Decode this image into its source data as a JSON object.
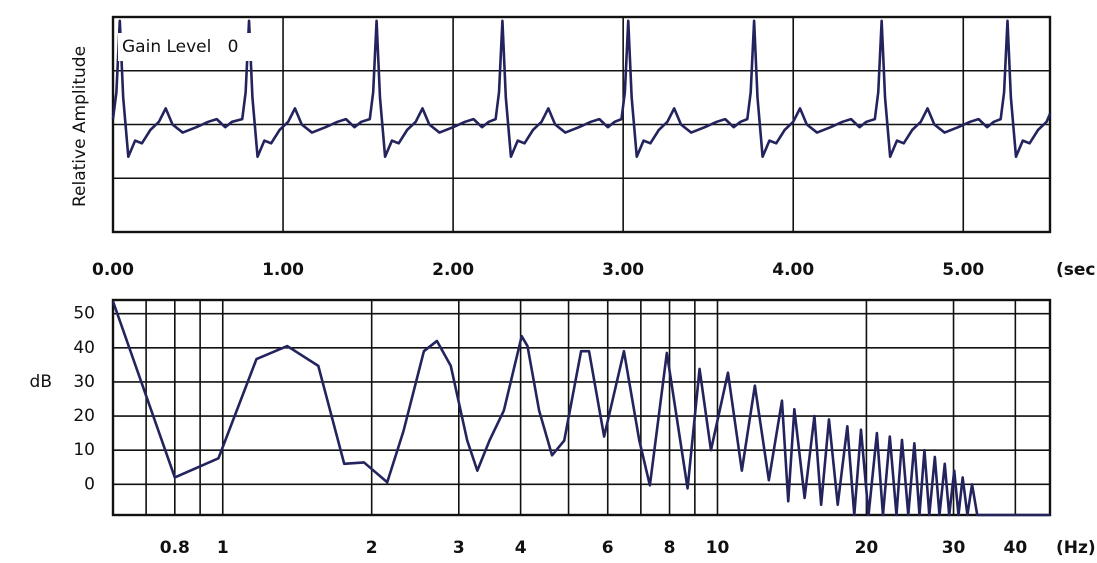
{
  "chart_data": [
    {
      "type": "line",
      "ylabel": "Relative Amplitude",
      "annotation": "Gain Level   0",
      "xlabel": "(sec)",
      "color": "#23235e",
      "xlim": [
        0,
        5.51
      ],
      "xticks": [
        {
          "value": 0,
          "label": "0.00"
        },
        {
          "value": 1,
          "label": "1.00"
        },
        {
          "value": 2,
          "label": "2.00"
        },
        {
          "value": 3,
          "label": "3.00"
        },
        {
          "value": 4,
          "label": "4.00"
        },
        {
          "value": 5,
          "label": "5.00"
        }
      ],
      "ylim": [
        -2,
        2
      ],
      "yticks": [
        -1,
        0,
        1
      ],
      "show_ytick_labels": false,
      "grid": true,
      "x": [
        0.0,
        0.02,
        0.04,
        0.06,
        0.09,
        0.13,
        0.17,
        0.22,
        0.27,
        0.31,
        0.35,
        0.41,
        0.49,
        0.56,
        0.61,
        0.66,
        0.7,
        0.76,
        0.78,
        0.8,
        0.82,
        0.85,
        0.89,
        0.93,
        0.98,
        1.03,
        1.07,
        1.11,
        1.17,
        1.25,
        1.32,
        1.37,
        1.42,
        1.46,
        1.51,
        1.53,
        1.55,
        1.57,
        1.6,
        1.64,
        1.68,
        1.73,
        1.78,
        1.82,
        1.86,
        1.92,
        2.0,
        2.07,
        2.12,
        2.17,
        2.21,
        2.25,
        2.27,
        2.29,
        2.31,
        2.34,
        2.38,
        2.42,
        2.47,
        2.52,
        2.56,
        2.6,
        2.66,
        2.74,
        2.81,
        2.86,
        2.91,
        2.95,
        2.99,
        3.01,
        3.03,
        3.05,
        3.08,
        3.12,
        3.16,
        3.21,
        3.26,
        3.3,
        3.34,
        3.4,
        3.48,
        3.55,
        3.6,
        3.65,
        3.69,
        3.73,
        3.75,
        3.77,
        3.79,
        3.82,
        3.86,
        3.9,
        3.95,
        4.0,
        4.04,
        4.08,
        4.14,
        4.22,
        4.29,
        4.34,
        4.39,
        4.43,
        4.48,
        4.5,
        4.52,
        4.54,
        4.57,
        4.61,
        4.65,
        4.7,
        4.75,
        4.79,
        4.83,
        4.89,
        4.97,
        5.04,
        5.09,
        5.14,
        5.18,
        5.22,
        5.24,
        5.26,
        5.28,
        5.31,
        5.35,
        5.39,
        5.44,
        5.49,
        5.51
      ],
      "values": [
        0.1,
        0.6,
        1.93,
        0.5,
        -0.6,
        -0.3,
        -0.35,
        -0.1,
        0.05,
        0.3,
        0,
        -0.15,
        -0.05,
        0.05,
        0.1,
        -0.05,
        0.05,
        0.1,
        0.6,
        1.93,
        0.5,
        -0.6,
        -0.3,
        -0.35,
        -0.1,
        0.05,
        0.3,
        0,
        -0.15,
        -0.05,
        0.05,
        0.1,
        -0.05,
        0.05,
        0.1,
        0.6,
        1.93,
        0.5,
        -0.6,
        -0.3,
        -0.35,
        -0.1,
        0.05,
        0.3,
        0,
        -0.15,
        -0.05,
        0.05,
        0.1,
        -0.05,
        0.05,
        0.1,
        0.6,
        1.93,
        0.5,
        -0.6,
        -0.3,
        -0.35,
        -0.1,
        0.05,
        0.3,
        0,
        -0.15,
        -0.05,
        0.05,
        0.1,
        -0.05,
        0.05,
        0.1,
        0.6,
        1.93,
        0.5,
        -0.6,
        -0.3,
        -0.35,
        -0.1,
        0.05,
        0.3,
        0,
        -0.15,
        -0.05,
        0.05,
        0.1,
        -0.05,
        0.05,
        0.1,
        0.6,
        1.93,
        0.5,
        -0.6,
        -0.3,
        -0.35,
        -0.1,
        0.05,
        0.3,
        0,
        -0.15,
        -0.05,
        0.05,
        0.1,
        -0.05,
        0.05,
        0.1,
        0.6,
        1.93,
        0.5,
        -0.6,
        -0.3,
        -0.35,
        -0.1,
        0.05,
        0.3,
        0,
        -0.15,
        -0.05,
        0.05,
        0.1,
        -0.05,
        0.05,
        0.1,
        0.6,
        1.93,
        0.5,
        -0.6,
        -0.3,
        -0.35,
        -0.1,
        0.05,
        0.2
      ]
    },
    {
      "type": "line",
      "ylabel": "dB",
      "xlabel": "(Hz)",
      "color": "#23235e",
      "xscale": "log",
      "xlim": [
        0.6,
        47
      ],
      "xticks": [
        0.8,
        1,
        2,
        3,
        4,
        6,
        8,
        10,
        20,
        30,
        40
      ],
      "minor_grid_x": [
        0.7,
        0.9,
        5,
        7,
        9
      ],
      "ylim": [
        -9,
        54
      ],
      "yticks": [
        0,
        10,
        20,
        30,
        40,
        50
      ],
      "show_ytick_labels": true,
      "grid": true,
      "x": [
        0.6,
        0.8,
        0.98,
        1.17,
        1.35,
        1.56,
        1.76,
        1.93,
        2.15,
        2.32,
        2.55,
        2.71,
        2.89,
        3.12,
        3.27,
        3.46,
        3.7,
        4.02,
        4.13,
        4.36,
        4.63,
        4.9,
        5.3,
        5.5,
        5.9,
        6.47,
        6.95,
        7.3,
        7.9,
        8.7,
        9.2,
        9.7,
        10.5,
        11.2,
        11.9,
        12.7,
        13.5,
        13.9,
        14.3,
        15.0,
        15.7,
        16.2,
        16.8,
        17.5,
        18.3,
        18.9,
        19.5,
        20.2,
        21.0,
        21.6,
        22.3,
        23.0,
        23.6,
        24.3,
        25.0,
        25.6,
        26.2,
        26.8,
        27.5,
        28.1,
        28.8,
        29.4,
        30.1,
        30.7,
        31.3,
        32.0,
        32.7,
        33.5,
        47
      ],
      "values": [
        53.6,
        2,
        7.6,
        36.7,
        40.5,
        34.7,
        6,
        6.4,
        0.6,
        15.7,
        39,
        42,
        34.7,
        12.8,
        4,
        12.8,
        21.6,
        43.4,
        40.5,
        21.6,
        8.5,
        12.8,
        39,
        39,
        14,
        39,
        12.8,
        -0.3,
        38.5,
        -1.2,
        33.8,
        10,
        32.7,
        4,
        28.9,
        1.2,
        24.5,
        -5,
        22,
        -4,
        20,
        -6,
        19,
        -6,
        17,
        -9,
        16,
        -9,
        15,
        -9,
        14,
        -9,
        13,
        -9,
        12,
        -9,
        10,
        -9,
        8,
        -9,
        6,
        -9,
        4,
        -9,
        2,
        -9,
        0,
        -9,
        -9
      ]
    }
  ]
}
